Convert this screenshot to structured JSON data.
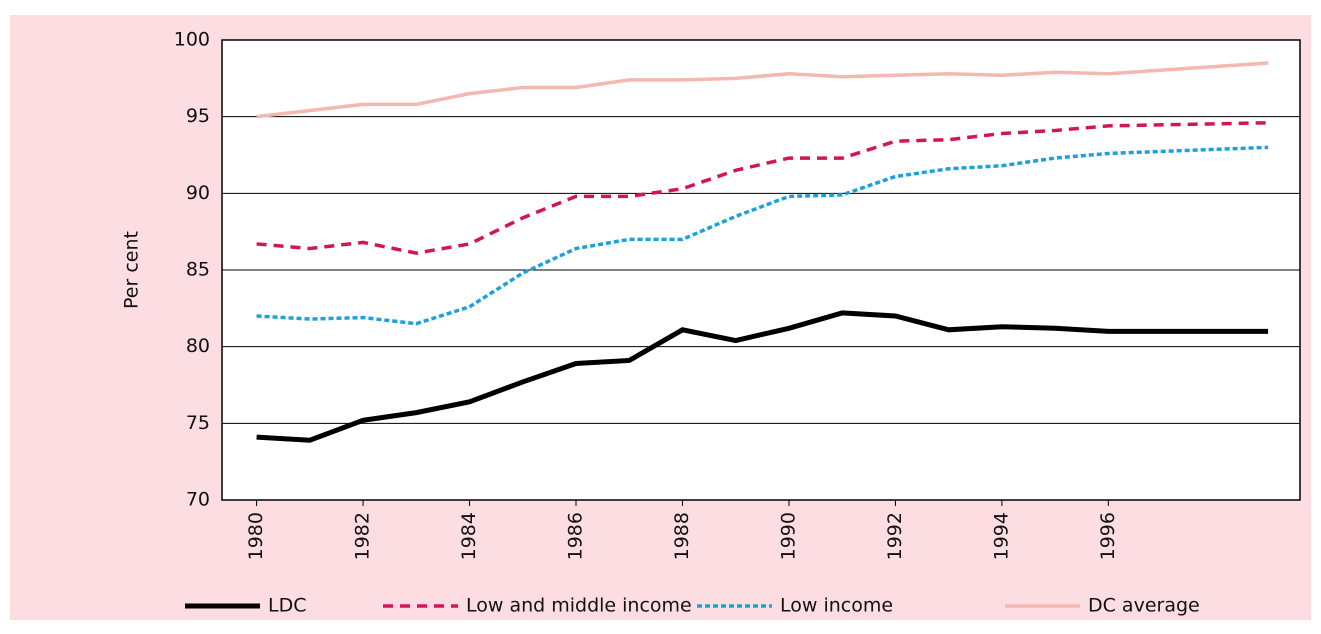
{
  "chart_data": {
    "type": "line",
    "y_label": "Per cent",
    "x": [
      1980,
      1981,
      1982,
      1983,
      1984,
      1985,
      1986,
      1987,
      1988,
      1989,
      1990,
      1991,
      1992,
      1993,
      1994,
      1995,
      1996,
      1999
    ],
    "series": [
      {
        "name": "LDC",
        "color": "#000000",
        "values": [
          74.1,
          73.9,
          75.2,
          75.7,
          76.4,
          77.7,
          78.9,
          79.1,
          81.1,
          80.4,
          81.2,
          82.2,
          82.0,
          81.1,
          81.3,
          81.2,
          81.0,
          81.0
        ]
      },
      {
        "name": "Low and  middle income",
        "color": "#d4145a",
        "values": [
          86.7,
          86.4,
          86.8,
          86.1,
          86.7,
          88.4,
          89.8,
          89.8,
          90.3,
          91.5,
          92.3,
          92.3,
          93.4,
          93.5,
          93.9,
          94.1,
          94.4,
          94.6
        ]
      },
      {
        "name": "Low income",
        "color": "#1ba1dc",
        "values": [
          82.0,
          81.8,
          81.9,
          81.5,
          82.6,
          84.8,
          86.4,
          87.0,
          87.0,
          88.5,
          89.8,
          89.9,
          91.1,
          91.6,
          91.8,
          92.3,
          92.6,
          93.0
        ]
      },
      {
        "name": "DC average",
        "color": "#f4b8b0",
        "values": [
          95.0,
          95.4,
          95.8,
          95.8,
          96.5,
          96.9,
          96.9,
          97.4,
          97.4,
          97.5,
          97.8,
          97.6,
          97.7,
          97.8,
          97.7,
          97.9,
          97.8,
          98.5
        ]
      }
    ],
    "xlim": [
      1979.35,
      1999.6
    ],
    "xticks": [
      1980,
      1982,
      1984,
      1986,
      1988,
      1990,
      1992,
      1994,
      1996
    ],
    "ylim": [
      70,
      100
    ],
    "yticks": [
      70,
      75,
      80,
      85,
      90,
      95,
      100
    ],
    "grid": true,
    "background": "#fcdde2"
  }
}
